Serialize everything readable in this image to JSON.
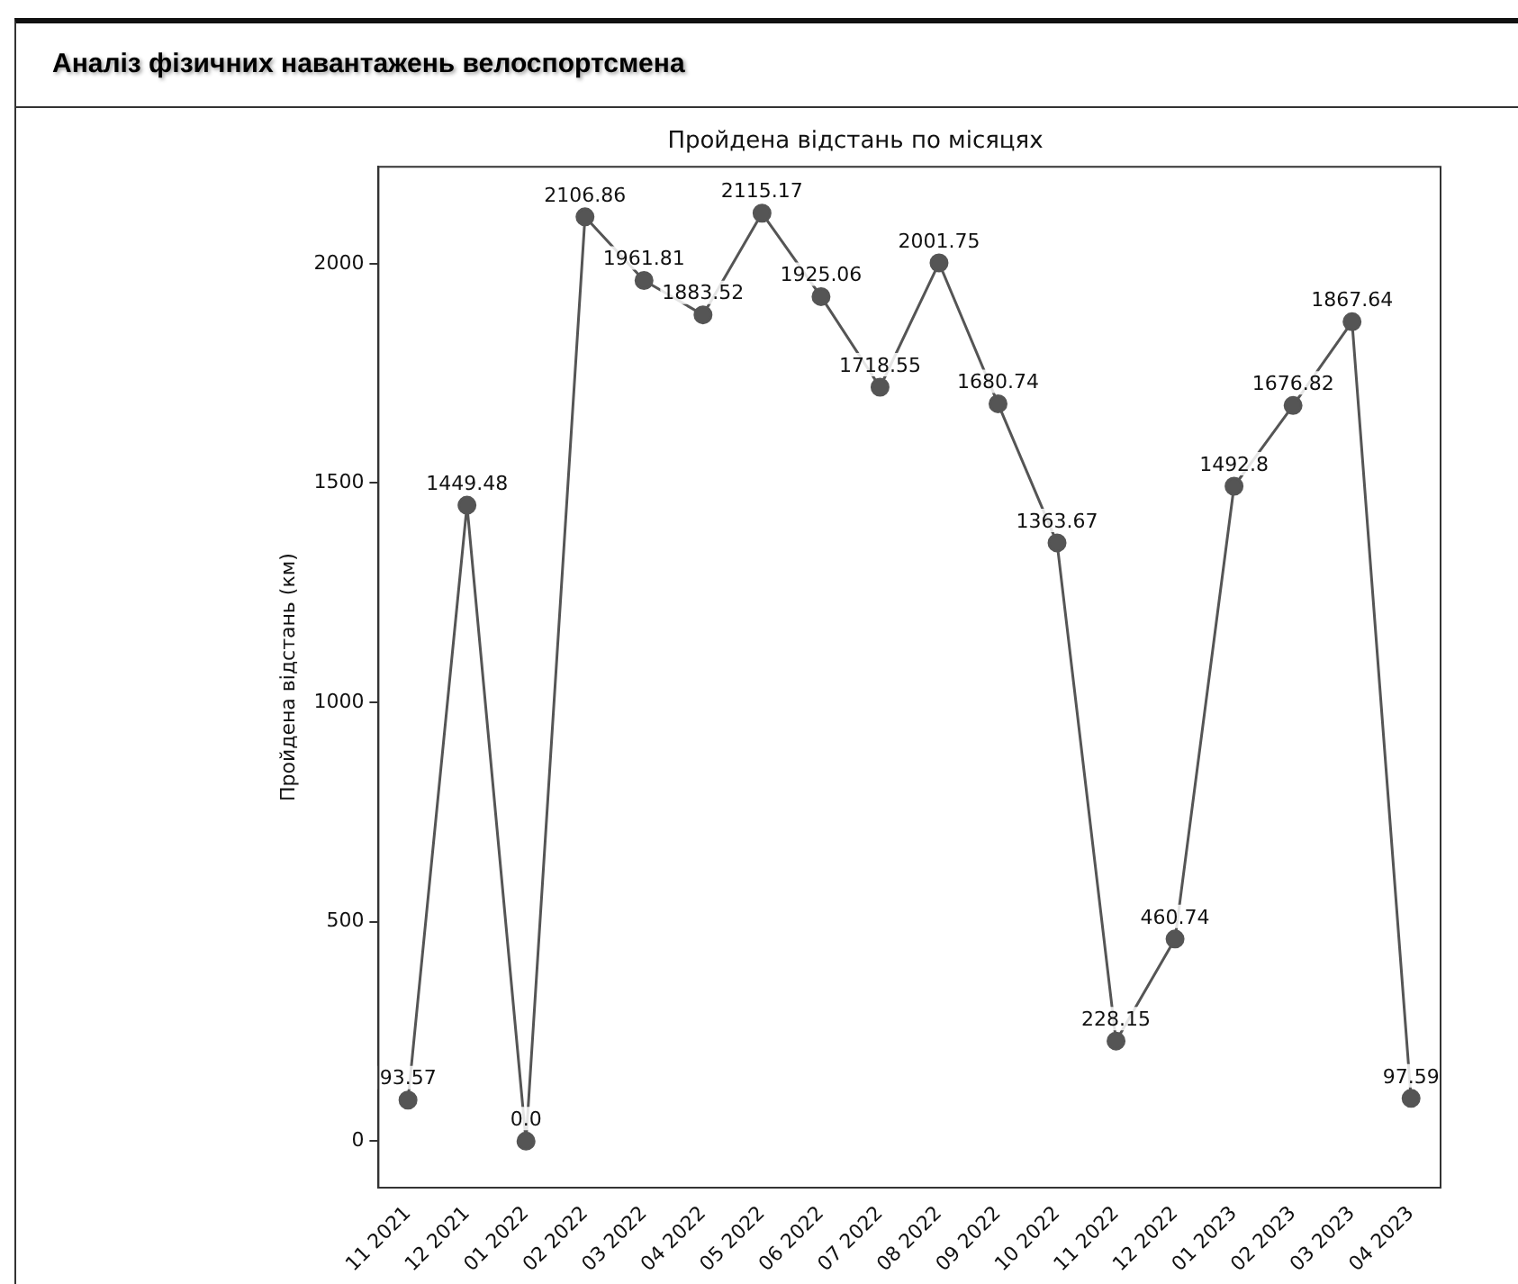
{
  "chart_data": {
    "type": "line",
    "title": "Аналіз фізичних навантажень велоспортсмена",
    "subtitle": "Пройдена відстань по місяцях",
    "ylabel": "Пройдена відстань (км)",
    "categories": [
      "11 2021",
      "12 2021",
      "01 2022",
      "02 2022",
      "03 2022",
      "04 2022",
      "05 2022",
      "06 2022",
      "07 2022",
      "08 2022",
      "09 2022",
      "10 2022",
      "11 2022",
      "12 2022",
      "01 2023",
      "02 2023",
      "03 2023",
      "04 2023"
    ],
    "series": [
      {
        "color": "#555555",
        "values": [
          93.57,
          1449.48,
          0,
          2106.86,
          1961.81,
          1883.52,
          2115.17,
          1925.06,
          1718.55,
          2001.75,
          1680.74,
          1363.67,
          228.15,
          460.74,
          1492.8,
          1676.82,
          1867.64,
          97.59
        ],
        "value_labels": [
          "93.57",
          "1449.48",
          "0.0",
          "2106.86",
          "1961.81",
          "1883.52",
          "2115.17",
          "1925.06",
          "1718.55",
          "2001.75",
          "1680.74",
          "1363.67",
          "228.15",
          "460.74",
          "1492.8",
          "1676.82",
          "1867.64",
          "97.59"
        ]
      }
    ],
    "ylim": [
      -106,
      2221
    ],
    "yticks": [
      0,
      500,
      1000,
      1500,
      2000
    ],
    "grid": false,
    "legend": false,
    "marker": "circle",
    "line_style": "solid"
  }
}
